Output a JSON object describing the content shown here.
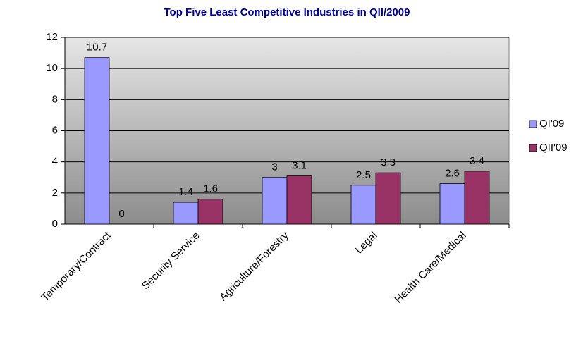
{
  "chart_data": {
    "type": "bar",
    "title": "Top Five Least Competitive Industries in QII/2009",
    "categories": [
      "Temporary/Contract",
      "Security Service",
      "Agriculture/Forestry",
      "Legal",
      "Health Care/Medical"
    ],
    "series": [
      {
        "name": "QI'09",
        "color": "#9999ff",
        "values": [
          10.7,
          1.4,
          3,
          2.5,
          2.6
        ]
      },
      {
        "name": "QII'09",
        "color": "#993366",
        "values": [
          0,
          1.6,
          3.1,
          3.3,
          3.4
        ]
      }
    ],
    "ylim": [
      0,
      12
    ],
    "yticks": [
      0,
      2,
      4,
      6,
      8,
      10,
      12
    ],
    "grid": true,
    "legend": "right"
  }
}
